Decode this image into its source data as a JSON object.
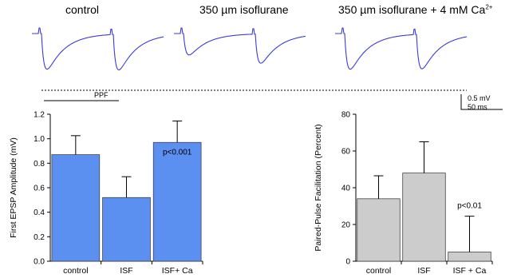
{
  "traces": {
    "conditions": [
      {
        "name": "control",
        "first_trough": 1.0,
        "second_trough": 1.0
      },
      {
        "name": "350 µm isoflurane",
        "first_trough": 0.6,
        "second_trough": 0.82
      },
      {
        "name_main": "350 µm isoflurane + 4 mM Ca",
        "name_sup": "2+",
        "first_trough": 1.0,
        "second_trough": 0.97
      }
    ],
    "ppf_label": "PPF",
    "scale_bar": {
      "voltage": "0.5 mV",
      "time": "50  ms"
    },
    "trace_color": "#3b3bd6"
  },
  "chart_data": [
    {
      "type": "bar",
      "categories": [
        "control",
        "ISF",
        "ISF+ Ca"
      ],
      "values": [
        0.87,
        0.52,
        0.97
      ],
      "errors": [
        0.155,
        0.17,
        0.175
      ],
      "ylabel": "First EPSP Amplitude (mV)",
      "ylim": [
        0,
        1.2
      ],
      "yticks": [
        "0.0",
        "0.2",
        "0.4",
        "0.6",
        "0.8",
        "1.0",
        "1.2"
      ],
      "annotation": {
        "text": "p<0.001",
        "category": "ISF+ Ca"
      },
      "color": "#5b8ff0",
      "grid": false
    },
    {
      "type": "bar",
      "categories": [
        "control",
        "ISF",
        "ISF + Ca"
      ],
      "values": [
        34,
        48,
        5
      ],
      "errors": [
        12.5,
        17,
        19.5
      ],
      "ylabel": "Paired-Pulse Facilitation (Percent)",
      "ylim": [
        0,
        80
      ],
      "yticks": [
        "0",
        "20",
        "40",
        "60",
        "80"
      ],
      "annotation": {
        "text": "p<0.01",
        "category": "ISF + Ca"
      },
      "color": "#cccccc",
      "grid": false
    }
  ]
}
